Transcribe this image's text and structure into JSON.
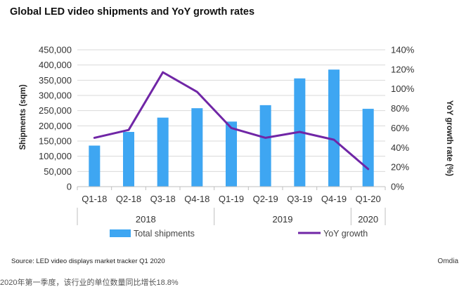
{
  "title": "Global LED video shipments and YoY growth rates",
  "source": "Source: LED video displays market tracker Q1 2020",
  "brand": "Omdia",
  "caption": "2020年第一季度，该行业的单位数量同比增长18.8%",
  "chart_data": {
    "type": "bar",
    "categories": [
      "Q1-18",
      "Q2-18",
      "Q3-18",
      "Q4-18",
      "Q1-19",
      "Q2-19",
      "Q3-19",
      "Q4-19",
      "Q1-20"
    ],
    "year_groups": [
      {
        "label": "2018",
        "start": 0,
        "end": 3
      },
      {
        "label": "2019",
        "start": 4,
        "end": 7
      },
      {
        "label": "2020",
        "start": 8,
        "end": 8
      }
    ],
    "series": [
      {
        "name": "Total shipments",
        "type": "bar",
        "axis": "left",
        "color": "#3ea6f2",
        "values": [
          135000,
          180000,
          227000,
          258000,
          214000,
          268000,
          356000,
          385000,
          256000
        ]
      },
      {
        "name": "YoY growth",
        "type": "line",
        "axis": "right",
        "color": "#7026a6",
        "values": [
          0.5,
          0.58,
          1.17,
          0.97,
          0.6,
          0.5,
          0.56,
          0.48,
          0.18
        ]
      }
    ],
    "ylabel": "Shipments (sqm)",
    "y2label": "YoY growth rate (%)",
    "ylim": [
      0,
      450000
    ],
    "ytick_labels": [
      "0",
      "50,000",
      "100,000",
      "150,000",
      "200,000",
      "250,000",
      "300,000",
      "350,000",
      "400,000",
      "450,000"
    ],
    "y2lim": [
      0,
      1.4
    ],
    "y2tick_labels": [
      "0%",
      "20%",
      "40%",
      "60%",
      "80%",
      "100%",
      "120%",
      "140%"
    ],
    "legend_position": "bottom",
    "grid": true
  }
}
